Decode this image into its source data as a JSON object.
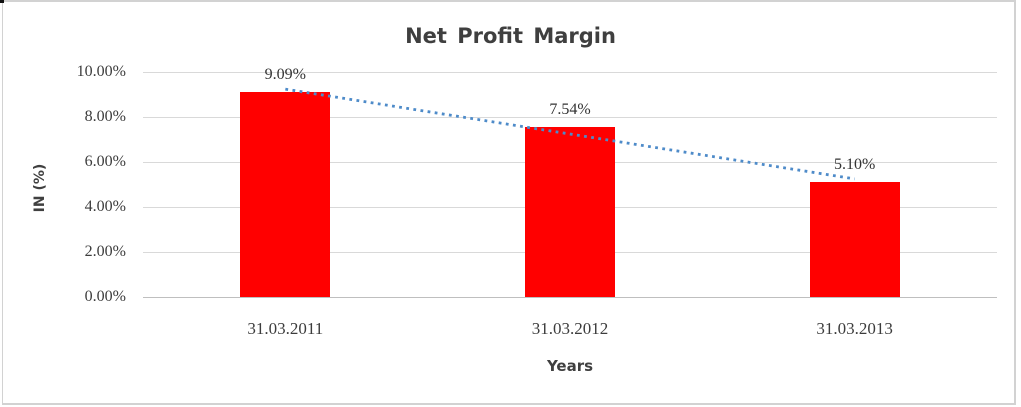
{
  "chart_data": {
    "type": "bar",
    "title": "Net Profit Margin",
    "categories": [
      "31.03.2011",
      "31.03.2012",
      "31.03.2013"
    ],
    "values": [
      9.09,
      7.54,
      5.1
    ],
    "data_labels": [
      "9.09%",
      "7.54%",
      "5.10%"
    ],
    "xlabel": "Years",
    "ylabel": "IN (%)",
    "ylim": [
      0,
      10
    ],
    "ytick_labels": [
      "0.00%",
      "2.00%",
      "4.00%",
      "6.00%",
      "8.00%",
      "10.00%"
    ],
    "grid": true,
    "legend": "none",
    "bar_color": "#ff0000",
    "trendline": {
      "type": "linear",
      "style": "dotted",
      "color": "#4e8bc9"
    }
  }
}
